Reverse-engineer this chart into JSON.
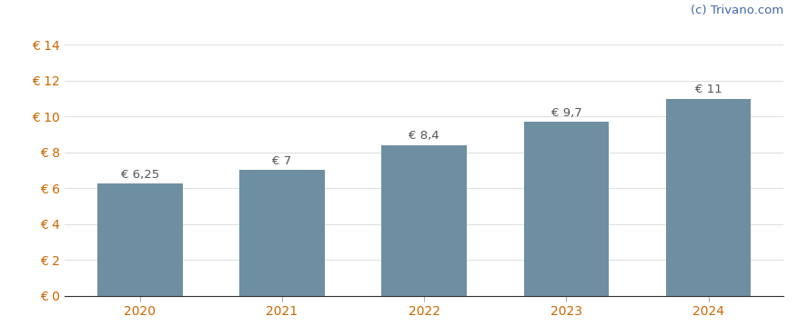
{
  "categories": [
    2020,
    2021,
    2022,
    2023,
    2024
  ],
  "values": [
    6.25,
    7.0,
    8.4,
    9.7,
    11.0
  ],
  "labels": [
    "€ 6,25",
    "€ 7",
    "€ 8,4",
    "€ 9,7",
    "€ 11"
  ],
  "bar_color": "#6e8fa1",
  "background_color": "#ffffff",
  "yticks": [
    0,
    2,
    4,
    6,
    8,
    10,
    12,
    14
  ],
  "ylim": [
    0,
    15.0
  ],
  "watermark": "(c) Trivano.com",
  "watermark_color": "#4466aa",
  "axis_label_color": "#cc6600",
  "bar_width": 0.6,
  "label_fontsize": 9.5,
  "tick_fontsize": 10,
  "watermark_fontsize": 9.5,
  "grid_color": "#e0e0e0",
  "bar_label_color": "#555555"
}
